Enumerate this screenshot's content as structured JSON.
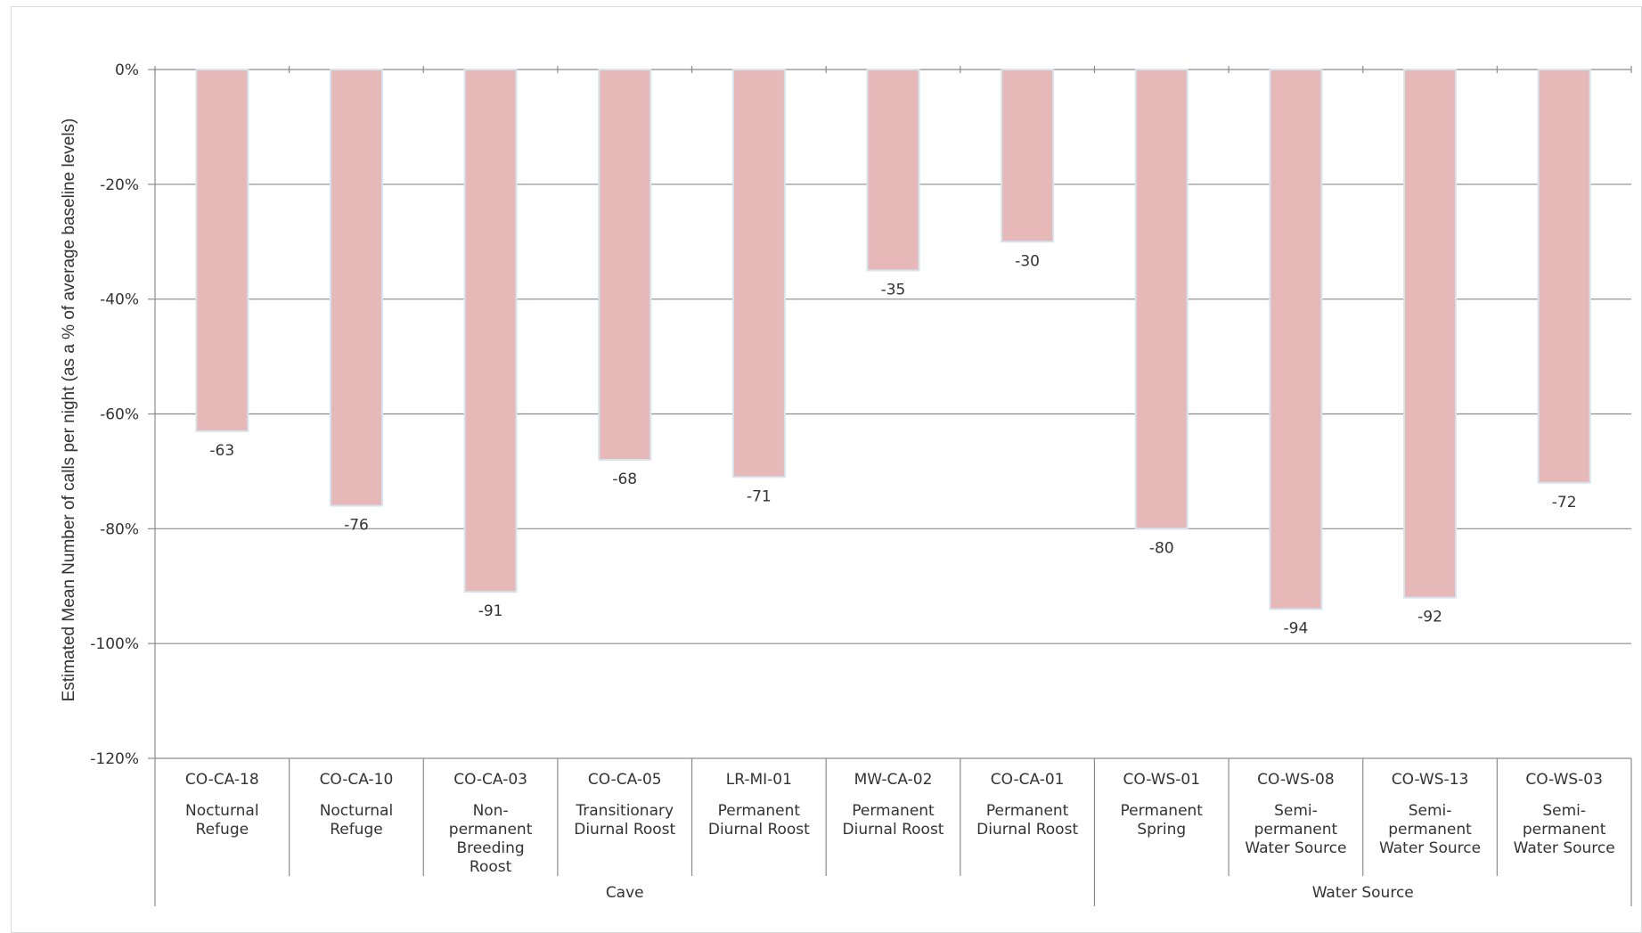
{
  "chart_data": {
    "type": "bar",
    "ylabel": "Estimated Mean Number of calls per night (as a % of average baseline levels)",
    "xlabel": "",
    "ylim": [
      -120,
      0
    ],
    "yticks": [
      0,
      -20,
      -40,
      -60,
      -80,
      -100,
      -120
    ],
    "ytick_labels": [
      "0%",
      "-20%",
      "-40%",
      "-60%",
      "-80%",
      "-100%",
      "-120%"
    ],
    "grid": true,
    "bar_color": "#e6b8b7",
    "bar_edge_color": "#d6e4f0",
    "categories": [
      {
        "code": "CO-CA-18",
        "type_lines": [
          "Nocturnal",
          "Refuge"
        ],
        "value": -63
      },
      {
        "code": "CO-CA-10",
        "type_lines": [
          "Nocturnal",
          "Refuge"
        ],
        "value": -76
      },
      {
        "code": "CO-CA-03",
        "type_lines": [
          "Non-",
          "permanent",
          "Breeding",
          "Roost"
        ],
        "value": -91
      },
      {
        "code": "CO-CA-05",
        "type_lines": [
          "Transitionary",
          "Diurnal Roost"
        ],
        "value": -68
      },
      {
        "code": "LR-MI-01",
        "type_lines": [
          "Permanent",
          "Diurnal Roost"
        ],
        "value": -71
      },
      {
        "code": "MW-CA-02",
        "type_lines": [
          "Permanent",
          "Diurnal Roost"
        ],
        "value": -35
      },
      {
        "code": "CO-CA-01",
        "type_lines": [
          "Permanent",
          "Diurnal Roost"
        ],
        "value": -30
      },
      {
        "code": "CO-WS-01",
        "type_lines": [
          "Permanent",
          "Spring"
        ],
        "value": -80
      },
      {
        "code": "CO-WS-08",
        "type_lines": [
          "Semi-",
          "permanent",
          "Water Source"
        ],
        "value": -94
      },
      {
        "code": "CO-WS-13",
        "type_lines": [
          "Semi-",
          "permanent",
          "Water Source"
        ],
        "value": -92
      },
      {
        "code": "CO-WS-03",
        "type_lines": [
          "Semi-",
          "permanent",
          "Water Source"
        ],
        "value": -72
      }
    ],
    "data_labels": [
      "-63",
      "-76",
      "-91",
      "-68",
      "-71",
      "-35",
      "-30",
      "-80",
      "-94",
      "-92",
      "-72"
    ],
    "groups": [
      {
        "name": "Cave",
        "count": 7
      },
      {
        "name": "Water Source",
        "count": 4
      }
    ]
  }
}
